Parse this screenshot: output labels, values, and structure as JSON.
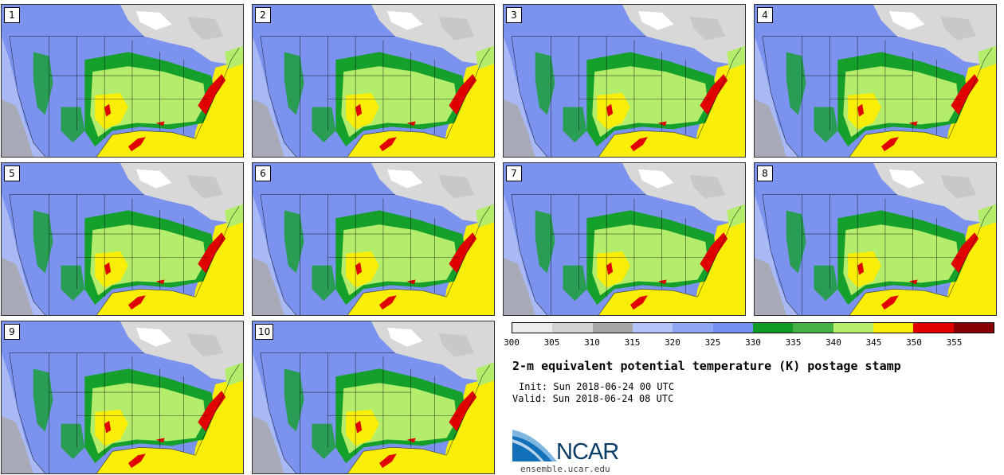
{
  "panels": [
    {
      "label": "1"
    },
    {
      "label": "2"
    },
    {
      "label": "3"
    },
    {
      "label": "4"
    },
    {
      "label": "5"
    },
    {
      "label": "6"
    },
    {
      "label": "7"
    },
    {
      "label": "8"
    },
    {
      "label": "9"
    },
    {
      "label": "10"
    }
  ],
  "colorbar": {
    "colors": [
      "#ececec",
      "#d2d2d2",
      "#a6a6a6",
      "#b3c3f7",
      "#8ea6f3",
      "#7390ef",
      "#129a28",
      "#45b045",
      "#b6ee6e",
      "#f9ef06",
      "#e10000",
      "#860000"
    ],
    "ticks": [
      "300",
      "305",
      "310",
      "315",
      "320",
      "325",
      "330",
      "335",
      "340",
      "345",
      "350",
      "355"
    ]
  },
  "map_colors": {
    "ocean": "#a9b9f5",
    "land_cool": "#7b93ee",
    "land_cold": "#d8d8d8",
    "terrain_gray": "#a0a0a0",
    "green_dark": "#15a02c",
    "green_light": "#b4ec6c",
    "yellow": "#f8ee07",
    "red": "#e00000"
  },
  "title": "2-m equivalent potential temperature (K) postage stamp",
  "init": "Init: Sun 2018-06-24 00 UTC",
  "valid": "Valid: Sun 2018-06-24 08 UTC",
  "logo": {
    "text": "NCAR",
    "url_text": "ensemble.ucar.edu"
  }
}
